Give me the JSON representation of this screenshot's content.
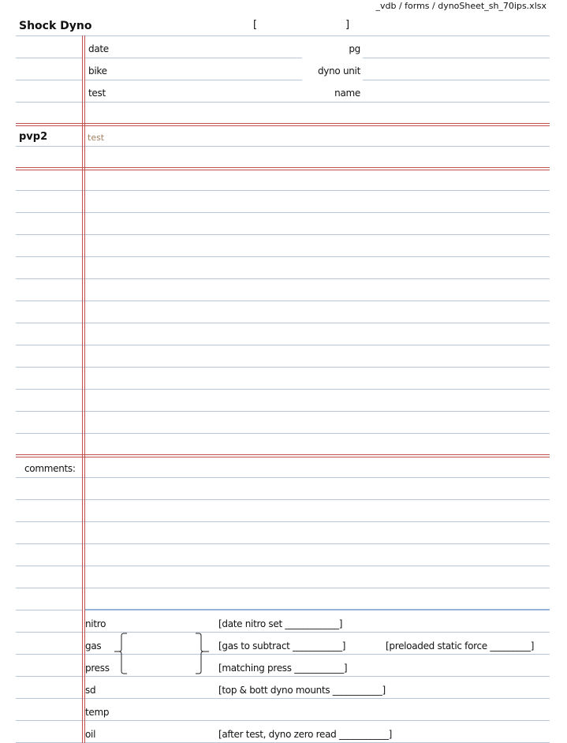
{
  "path": "_vdb / forms / dynoSheet_sh_70ips.xlsx",
  "title": "Shock Dyno",
  "bracket_open": "[",
  "bracket_close": "]",
  "header_fields": {
    "date": "date",
    "pg": "pg",
    "bike": "bike",
    "dyno_unit": "dyno unit",
    "test": "test",
    "name": "name"
  },
  "section": {
    "label": "pvp2",
    "placeholder": "test"
  },
  "comments_label": "comments:",
  "checklist": {
    "nitro": "nitro",
    "gas": "gas",
    "press": "press",
    "sd": "sd",
    "temp": "temp",
    "oil": "oil",
    "date_nitro_set": "[date nitro set ____________]",
    "gas_to_subtract": "[gas to subtract ___________]",
    "preloaded_static_force": "[preloaded static force _________]",
    "matching_press": "[matching press ___________]",
    "top_bott_mounts": "[top & bott dyno mounts ___________]",
    "after_test_zero": "[after test, dyno zero read ___________]"
  },
  "colors": {
    "grid_line": "#b8c6dc",
    "section_divider": "#c0504d",
    "checklist_divider": "#95b3d7"
  }
}
